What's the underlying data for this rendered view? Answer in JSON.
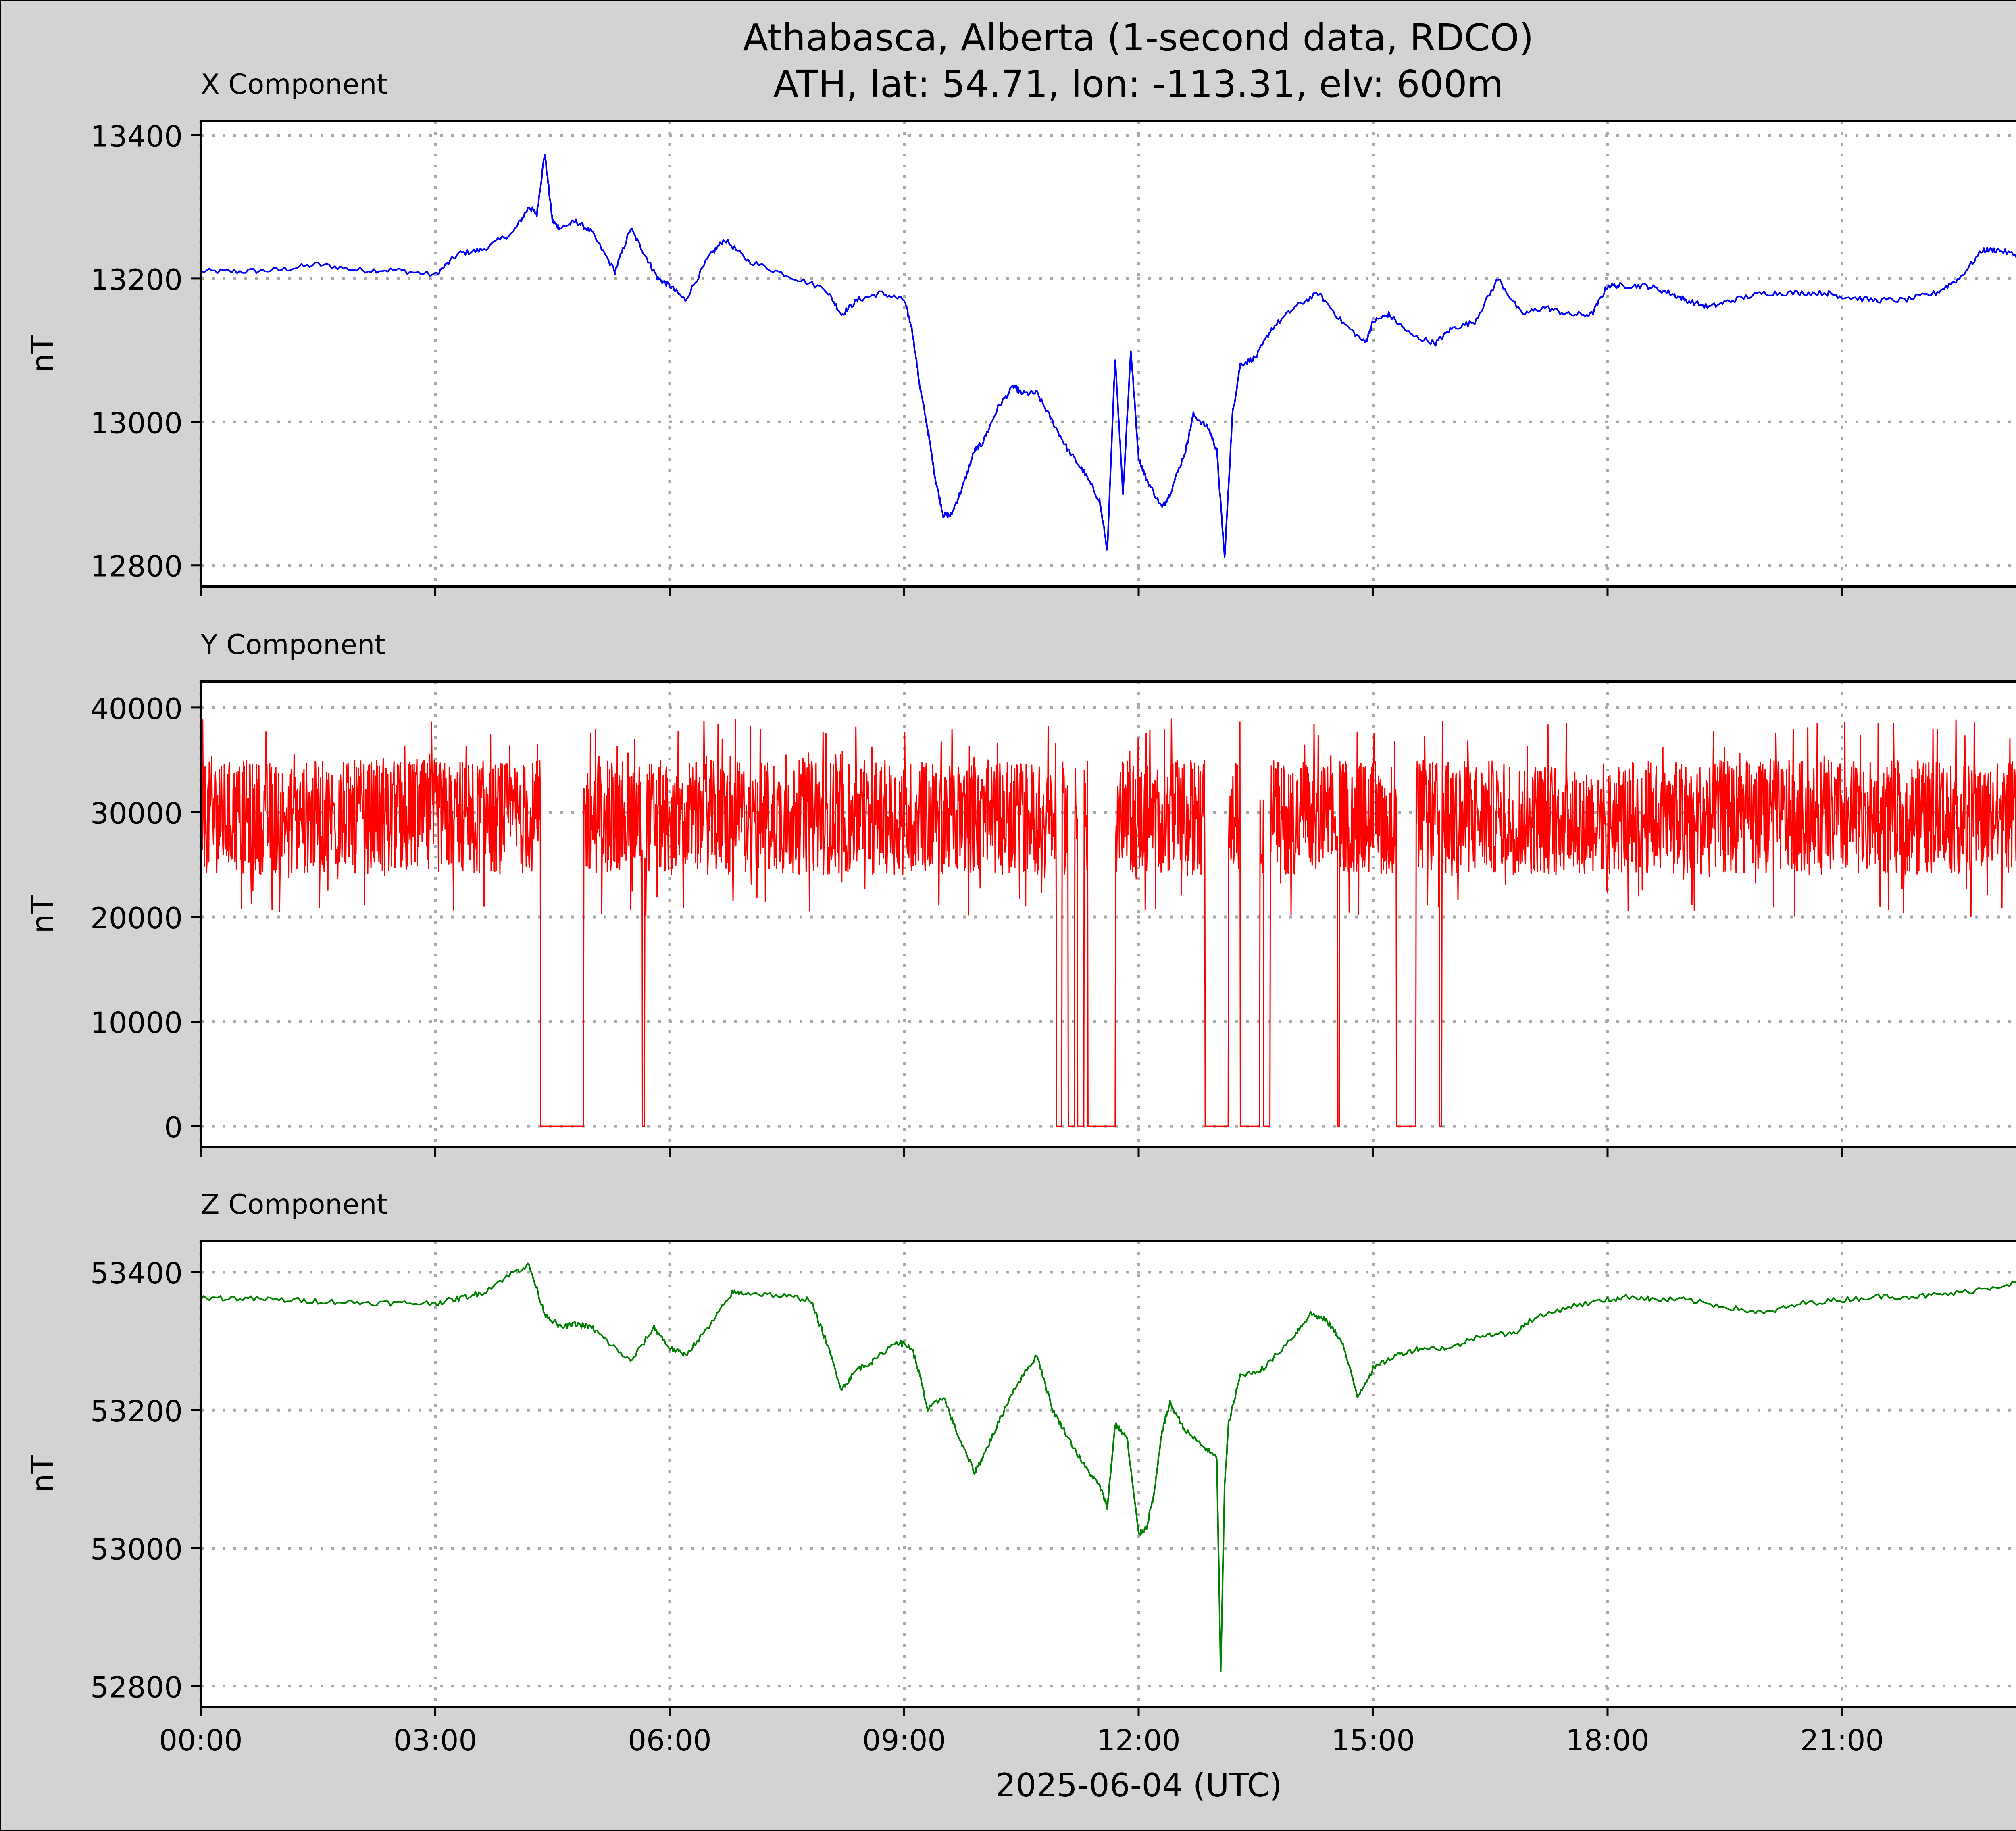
{
  "figure": {
    "title_line1": "Athabasca, Alberta (1-second data, RDCO)",
    "title_line2": "ATH, lat: 54.71, lon: -113.31, elv: 600m",
    "background": "#d3d3d3"
  },
  "chart_data": [
    {
      "type": "line",
      "title": "X Component",
      "ylabel": "nT",
      "color": "#0000ff",
      "xlim": [
        0,
        24
      ],
      "ylim": [
        12770,
        13420
      ],
      "yticks": [
        12800,
        13000,
        13200,
        13400
      ],
      "ytick_labels": [
        "12800",
        "13000",
        "13200",
        "13400"
      ],
      "grid": true,
      "x_hours": [
        0,
        0.5,
        1,
        1.5,
        2,
        2.5,
        3,
        3.3,
        3.6,
        4,
        4.2,
        4.3,
        4.4,
        4.5,
        4.6,
        4.8,
        5.0,
        5.3,
        5.5,
        5.7,
        5.85,
        6.0,
        6.2,
        6.5,
        6.7,
        7.0,
        7.5,
        8.0,
        8.2,
        8.4,
        8.7,
        9.0,
        9.1,
        9.2,
        9.3,
        9.4,
        9.5,
        9.6,
        9.75,
        9.9,
        10.0,
        10.2,
        10.4,
        10.5,
        10.7,
        10.9,
        11.1,
        11.3,
        11.5,
        11.6,
        11.7,
        11.8,
        11.9,
        12.0,
        12.1,
        12.3,
        12.4,
        12.6,
        12.7,
        12.9,
        13.0,
        13.1,
        13.2,
        13.3,
        13.5,
        13.7,
        14.0,
        14.3,
        14.6,
        14.9,
        15.0,
        15.2,
        15.5,
        15.8,
        16.0,
        16.3,
        16.6,
        16.9,
        17.2,
        17.5,
        17.8,
        18.0,
        18.2,
        18.5,
        18.8,
        19.0,
        19.3,
        19.6,
        20.0,
        20.4,
        20.8,
        21.0,
        21.4,
        21.8,
        22.2,
        22.5,
        22.8,
        23.0,
        23.3,
        23.6,
        24.0
      ],
      "values": [
        13210,
        13210,
        13212,
        13220,
        13212,
        13212,
        13205,
        13235,
        13240,
        13265,
        13300,
        13290,
        13375,
        13280,
        13270,
        13280,
        13265,
        13210,
        13270,
        13230,
        13200,
        13190,
        13170,
        13230,
        13255,
        13225,
        13205,
        13185,
        13150,
        13170,
        13180,
        13170,
        13130,
        13050,
        12990,
        12920,
        12870,
        12870,
        12910,
        12960,
        12970,
        13020,
        13050,
        13040,
        13040,
        13000,
        12960,
        12930,
        12890,
        12820,
        13090,
        12900,
        13100,
        12950,
        12920,
        12880,
        12900,
        12960,
        13010,
        12990,
        12960,
        12810,
        13010,
        13080,
        13090,
        13130,
        13160,
        13180,
        13140,
        13110,
        13140,
        13150,
        13120,
        13110,
        13130,
        13140,
        13200,
        13150,
        13160,
        13150,
        13150,
        13190,
        13190,
        13190,
        13180,
        13170,
        13160,
        13170,
        13180,
        13180,
        13180,
        13175,
        13170,
        13170,
        13180,
        13200,
        13240,
        13240,
        13230,
        13240,
        13230
      ]
    },
    {
      "type": "line",
      "title": "Y Component",
      "ylabel": "nT",
      "color": "#ff0000",
      "xlim": [
        0,
        24
      ],
      "ylim": [
        -2000,
        42500
      ],
      "yticks": [
        0,
        10000,
        20000,
        30000,
        40000
      ],
      "ytick_labels": [
        "0",
        "10000",
        "20000",
        "30000",
        "40000"
      ],
      "grid": true,
      "band_center": 29500,
      "band_low": 24000,
      "band_high": 35000,
      "dropout_hours": [
        [
          4.35,
          4.9
        ],
        [
          5.65,
          5.68
        ],
        [
          10.95,
          11.02
        ],
        [
          11.1,
          11.18
        ],
        [
          11.22,
          11.3
        ],
        [
          11.35,
          11.7
        ],
        [
          12.85,
          13.15
        ],
        [
          13.3,
          13.55
        ],
        [
          13.6,
          13.68
        ],
        [
          14.55,
          14.57
        ],
        [
          15.3,
          15.55
        ],
        [
          15.85,
          15.88
        ]
      ]
    },
    {
      "type": "line",
      "title": "Z Component",
      "ylabel": "nT",
      "color": "#008000",
      "xlim": [
        0,
        24
      ],
      "ylim": [
        52770,
        53445
      ],
      "yticks": [
        52800,
        53000,
        53200,
        53400
      ],
      "ytick_labels": [
        "52800",
        "53000",
        "53200",
        "53400"
      ],
      "grid": true,
      "xticks": [
        0,
        3,
        6,
        9,
        12,
        15,
        18,
        21
      ],
      "xtick_labels": [
        "00:00",
        "03:00",
        "06:00",
        "09:00",
        "12:00",
        "15:00",
        "18:00",
        "21:00"
      ],
      "xlabel": "2025-06-04 (UTC)",
      "x_hours": [
        0,
        0.5,
        1,
        1.5,
        2,
        2.5,
        3,
        3.3,
        3.6,
        4,
        4.2,
        4.4,
        4.6,
        4.8,
        5.0,
        5.2,
        5.5,
        5.8,
        6.0,
        6.2,
        6.5,
        6.8,
        7.0,
        7.5,
        7.8,
        8.0,
        8.2,
        8.4,
        8.6,
        8.9,
        9.1,
        9.2,
        9.3,
        9.5,
        9.7,
        9.9,
        10.0,
        10.2,
        10.4,
        10.7,
        10.9,
        11.1,
        11.3,
        11.5,
        11.6,
        11.7,
        11.85,
        12.0,
        12.1,
        12.2,
        12.3,
        12.4,
        12.6,
        12.8,
        13.0,
        13.05,
        13.1,
        13.15,
        13.3,
        13.6,
        14.0,
        14.2,
        14.4,
        14.6,
        14.8,
        15.0,
        15.3,
        15.6,
        16.0,
        16.4,
        16.8,
        17.0,
        17.5,
        18.0,
        18.3,
        18.6,
        19.0,
        19.5,
        20.0,
        20.5,
        21.0,
        21.5,
        22.0,
        22.5,
        23.0,
        23.5,
        24.0
      ],
      "values": [
        53363,
        53362,
        53360,
        53358,
        53356,
        53355,
        53355,
        53362,
        53370,
        53400,
        53410,
        53340,
        53320,
        53325,
        53320,
        53300,
        53270,
        53320,
        53290,
        53280,
        53320,
        53370,
        53370,
        53365,
        53360,
        53300,
        53230,
        53260,
        53270,
        53300,
        53290,
        53250,
        53200,
        53220,
        53160,
        53110,
        53130,
        53180,
        53230,
        53280,
        53200,
        53160,
        53120,
        53090,
        53060,
        53180,
        53160,
        53020,
        53030,
        53080,
        53170,
        53210,
        53170,
        53150,
        53130,
        52820,
        53090,
        53180,
        53250,
        53260,
        53310,
        53340,
        53330,
        53300,
        53220,
        53260,
        53280,
        53290,
        53290,
        53310,
        53310,
        53330,
        53350,
        53360,
        53365,
        53360,
        53360,
        53350,
        53340,
        53355,
        53360,
        53365,
        53365,
        53370,
        53380,
        53390,
        53375
      ]
    }
  ]
}
